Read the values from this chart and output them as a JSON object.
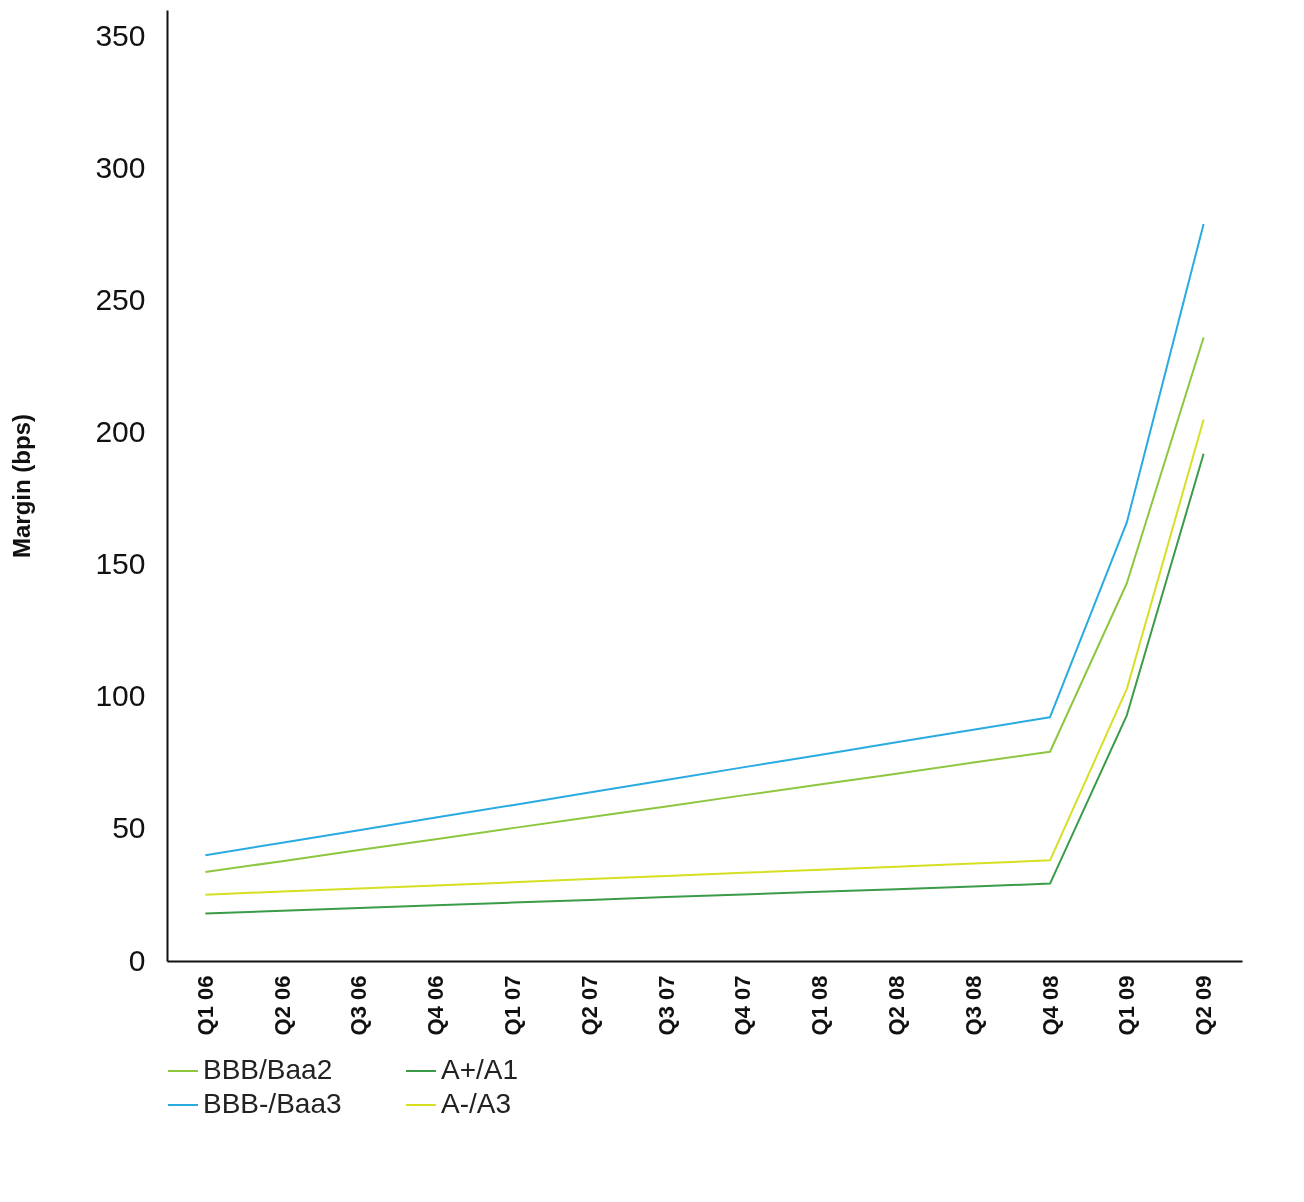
{
  "chart_data": {
    "type": "line",
    "ylabel": "Margin (bps)",
    "categories": [
      "Q1 06",
      "Q2 06",
      "Q3 06",
      "Q4 06",
      "Q1 07",
      "Q2 07",
      "Q3 07",
      "Q4 07",
      "Q1 08",
      "Q2 08",
      "Q3 08",
      "Q4 08",
      "Q1 09",
      "Q2 09"
    ],
    "series": [
      {
        "name": "BBB/Baa2",
        "color": "#8dc63f",
        "values": [
          33.7,
          37.8,
          42.0,
          46.1,
          50.3,
          54.4,
          58.5,
          62.7,
          66.8,
          70.9,
          75.1,
          79.2,
          143,
          236
        ]
      },
      {
        "name": "A+/A1",
        "color": "#3a9b48",
        "values": [
          18.0,
          19.0,
          20.1,
          21.1,
          22.1,
          23.1,
          24.2,
          25.2,
          26.2,
          27.2,
          28.2,
          29.3,
          93,
          192
        ]
      },
      {
        "name": "BBB-/Baa3",
        "color": "#29abe2",
        "values": [
          40.0,
          44.8,
          49.5,
          54.3,
          59.0,
          63.8,
          68.5,
          73.3,
          78.0,
          82.8,
          87.5,
          92.3,
          166,
          279
        ]
      },
      {
        "name": "A-/A3",
        "color": "#d7df23",
        "values": [
          25.1,
          26.3,
          27.4,
          28.6,
          29.8,
          31.0,
          32.2,
          33.4,
          34.5,
          35.7,
          36.9,
          38.1,
          103,
          205
        ]
      }
    ],
    "ylim": [
      0,
      360
    ],
    "yticks": [
      0,
      50,
      100,
      150,
      200,
      250,
      300,
      350
    ],
    "grid": false,
    "legend": "bottom",
    "marker": "none",
    "line_style": "solid"
  }
}
